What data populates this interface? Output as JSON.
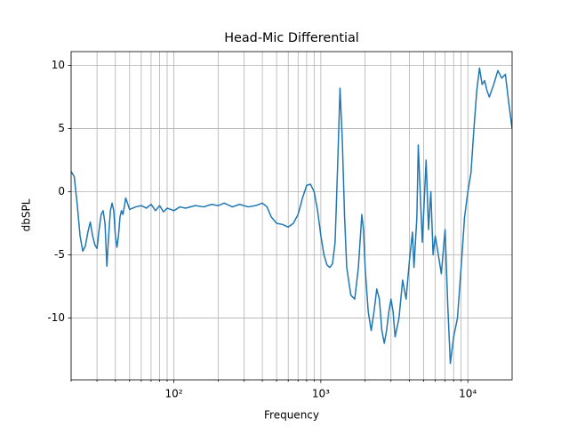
{
  "chart_data": {
    "type": "line",
    "title": "Head-Mic Differential",
    "xlabel": "Frequency",
    "ylabel": "dbSPL",
    "xscale": "log",
    "grid": true,
    "color": "#1f77b4",
    "xlim": [
      20,
      20000
    ],
    "ylim": [
      -14.9,
      11.1
    ],
    "xticks": [
      {
        "value": 100,
        "label": "10²"
      },
      {
        "value": 1000,
        "label": "10³"
      },
      {
        "value": 10000,
        "label": "10⁴"
      }
    ],
    "xminorticks": [
      20,
      30,
      40,
      50,
      60,
      70,
      80,
      90,
      200,
      300,
      400,
      500,
      600,
      700,
      800,
      900,
      2000,
      3000,
      4000,
      5000,
      6000,
      7000,
      8000,
      9000
    ],
    "yticks": [
      -10,
      -5,
      0,
      5,
      10
    ],
    "series": [
      {
        "name": "Head-Mic Differential",
        "x": [
          20,
          21,
          22,
          23,
          24,
          25,
          26,
          27,
          28,
          29,
          30,
          31,
          32,
          33,
          34,
          35,
          36,
          37,
          38,
          39,
          40,
          41,
          42,
          43,
          44,
          45,
          46,
          47,
          48,
          50,
          55,
          60,
          65,
          70,
          75,
          80,
          85,
          90,
          100,
          110,
          120,
          140,
          160,
          180,
          200,
          220,
          250,
          280,
          320,
          360,
          400,
          430,
          460,
          500,
          550,
          600,
          650,
          700,
          750,
          800,
          850,
          900,
          950,
          1000,
          1050,
          1100,
          1150,
          1200,
          1250,
          1300,
          1350,
          1400,
          1450,
          1500,
          1600,
          1700,
          1800,
          1900,
          1950,
          2000,
          2100,
          2200,
          2300,
          2400,
          2500,
          2600,
          2700,
          2800,
          2900,
          3000,
          3100,
          3200,
          3400,
          3600,
          3800,
          4000,
          4200,
          4300,
          4500,
          4600,
          4700,
          4900,
          5200,
          5400,
          5600,
          5800,
          6000,
          6300,
          6600,
          7000,
          7300,
          7600,
          8000,
          8500,
          9000,
          9500,
          10000,
          10500,
          11000,
          11500,
          12000,
          12500,
          13000,
          13500,
          14000,
          15000,
          16000,
          17000,
          18000,
          19000,
          20000
        ],
        "values": [
          1.6,
          1.2,
          -1,
          -3.5,
          -4.7,
          -4.3,
          -3.2,
          -2.4,
          -3.5,
          -4.2,
          -4.5,
          -3,
          -1.8,
          -1.5,
          -2.5,
          -5.9,
          -3.5,
          -1.5,
          -0.9,
          -1.5,
          -3.5,
          -4.4,
          -3.5,
          -2,
          -1.5,
          -1.8,
          -1.2,
          -0.5,
          -0.8,
          -1.4,
          -1.2,
          -1.1,
          -1.3,
          -1,
          -1.5,
          -1.1,
          -1.6,
          -1.3,
          -1.5,
          -1.2,
          -1.3,
          -1.1,
          -1.2,
          -1,
          -1.1,
          -0.9,
          -1.2,
          -1,
          -1.2,
          -1.1,
          -0.9,
          -1.2,
          -2,
          -2.5,
          -2.6,
          -2.8,
          -2.5,
          -1.8,
          -0.5,
          0.5,
          0.6,
          0,
          -1.5,
          -3.5,
          -5,
          -5.8,
          -6,
          -5.7,
          -4,
          2,
          8.2,
          4,
          -2,
          -6,
          -8.2,
          -8.5,
          -6,
          -1.8,
          -3,
          -6,
          -9.5,
          -11,
          -9.5,
          -7.7,
          -8.5,
          -11,
          -12,
          -11,
          -9.5,
          -8.5,
          -9.5,
          -11.5,
          -10,
          -7,
          -8.5,
          -5.5,
          -3.2,
          -6,
          -2,
          3.7,
          1,
          -4,
          2.5,
          -3,
          0,
          -5,
          -3.5,
          -5,
          -6.5,
          -3,
          -9,
          -13.6,
          -11.5,
          -10,
          -6,
          -2,
          0,
          1.5,
          5,
          8,
          9.8,
          8.5,
          8.8,
          8,
          7.5,
          8.5,
          9.6,
          9,
          9.3,
          7,
          5
        ]
      }
    ]
  }
}
